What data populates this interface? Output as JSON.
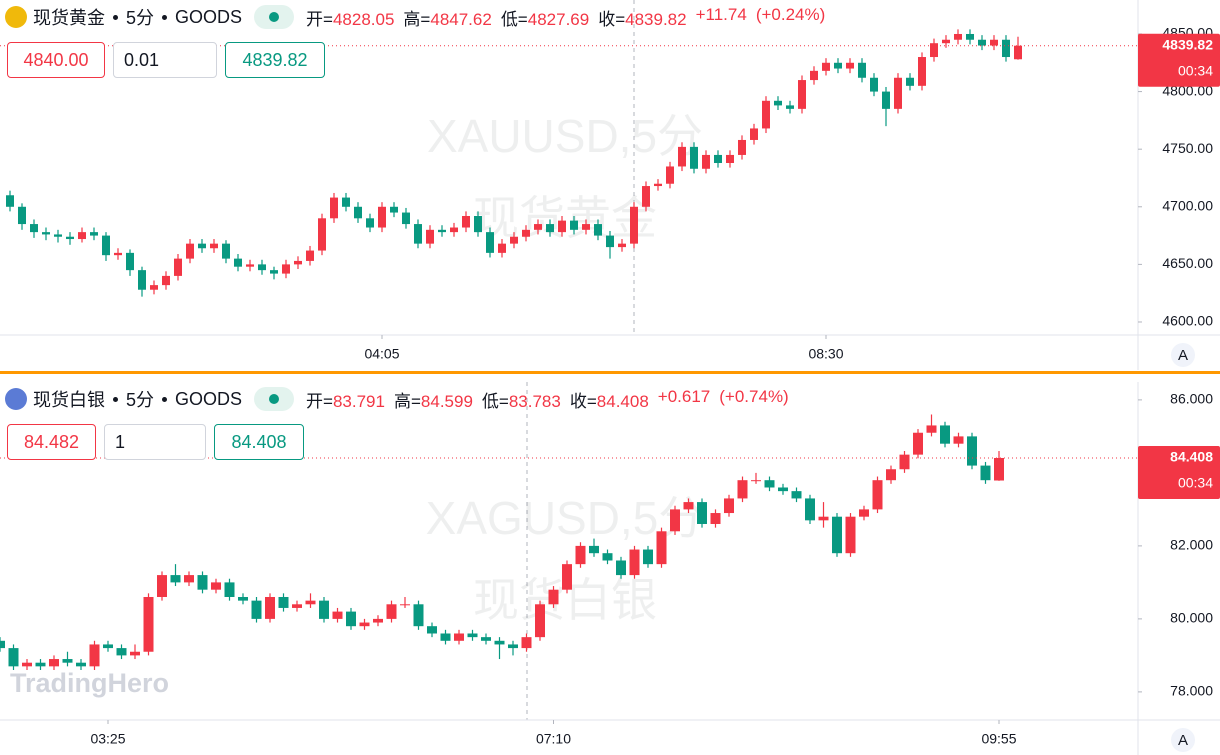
{
  "logo": "TradingHero",
  "chart_data": [
    {
      "type": "candlestick",
      "symbol": "现货黄金",
      "interval": "5分",
      "exchange": "GOODS",
      "watermark_ticker": "XAUUSD,5分",
      "watermark_name": "现货黄金",
      "ohlc_labels": [
        "开=",
        "高=",
        "低=",
        "收="
      ],
      "ohlc_values": [
        4828.05,
        4847.62,
        4827.69,
        4839.82
      ],
      "change": {
        "value": 11.74,
        "label": "+11.74"
      },
      "change_pct": {
        "value": 0.24,
        "label": "(+0.24%)"
      },
      "sell_price": {
        "value": 4840,
        "label": "4840.00"
      },
      "quantity": 0.01,
      "buy_price": 4839.82,
      "last_price": 4839.82,
      "countdown": "00:34",
      "auto_scale_label": "A",
      "up_color": "#f23645",
      "down_color": "#089981",
      "grid": false,
      "ylim": [
        4588.7,
        4879.5
      ],
      "yticks": [
        {
          "value": 4600,
          "label": "4600.00"
        },
        {
          "value": 4650,
          "label": "4650.00"
        },
        {
          "value": 4700,
          "label": "4700.00"
        },
        {
          "value": 4750,
          "label": "4750.00"
        },
        {
          "value": 4800,
          "label": "4800.00"
        },
        {
          "value": 4850,
          "label": "4850.00"
        }
      ],
      "xticks": [
        {
          "value": 31,
          "label": "04:05"
        },
        {
          "value": 68,
          "label": "08:30"
        }
      ],
      "ohlc": [
        [
          4710,
          4714,
          4696,
          4700
        ],
        [
          4700,
          4703,
          4680,
          4685
        ],
        [
          4685,
          4689,
          4673,
          4678
        ],
        [
          4678,
          4682,
          4671,
          4676
        ],
        [
          4676,
          4680,
          4669,
          4674
        ],
        [
          4674,
          4678,
          4667,
          4672
        ],
        [
          4672,
          4682,
          4669,
          4678
        ],
        [
          4678,
          4682,
          4671,
          4675
        ],
        [
          4675,
          4678,
          4653,
          4658
        ],
        [
          4658,
          4664,
          4654,
          4660
        ],
        [
          4660,
          4663,
          4640,
          4645
        ],
        [
          4645,
          4648,
          4622,
          4628
        ],
        [
          4628,
          4636,
          4624,
          4632
        ],
        [
          4632,
          4644,
          4628,
          4640
        ],
        [
          4640,
          4659,
          4636,
          4655
        ],
        [
          4655,
          4672,
          4651,
          4668
        ],
        [
          4668,
          4672,
          4660,
          4664
        ],
        [
          4664,
          4672,
          4660,
          4668
        ],
        [
          4668,
          4671,
          4651,
          4655
        ],
        [
          4655,
          4659,
          4644,
          4648
        ],
        [
          4648,
          4654,
          4644,
          4650
        ],
        [
          4650,
          4654,
          4641,
          4645
        ],
        [
          4645,
          4648,
          4637,
          4642
        ],
        [
          4642,
          4654,
          4638,
          4650
        ],
        [
          4650,
          4657,
          4646,
          4653
        ],
        [
          4653,
          4666,
          4649,
          4662
        ],
        [
          4662,
          4694,
          4658,
          4690
        ],
        [
          4690,
          4712,
          4686,
          4708
        ],
        [
          4708,
          4712,
          4696,
          4700
        ],
        [
          4700,
          4704,
          4686,
          4690
        ],
        [
          4690,
          4694,
          4678,
          4682
        ],
        [
          4682,
          4704,
          4678,
          4700
        ],
        [
          4700,
          4704,
          4691,
          4695
        ],
        [
          4695,
          4699,
          4681,
          4685
        ],
        [
          4685,
          4689,
          4664,
          4668
        ],
        [
          4668,
          4684,
          4664,
          4680
        ],
        [
          4680,
          4684,
          4674,
          4678
        ],
        [
          4678,
          4686,
          4674,
          4682
        ],
        [
          4682,
          4696,
          4678,
          4692
        ],
        [
          4692,
          4696,
          4674,
          4678
        ],
        [
          4678,
          4682,
          4656,
          4660
        ],
        [
          4660,
          4672,
          4656,
          4668
        ],
        [
          4668,
          4678,
          4664,
          4674
        ],
        [
          4674,
          4684,
          4670,
          4680
        ],
        [
          4680,
          4689,
          4676,
          4685
        ],
        [
          4685,
          4689,
          4674,
          4678
        ],
        [
          4678,
          4692,
          4674,
          4688
        ],
        [
          4688,
          4692,
          4676,
          4680
        ],
        [
          4680,
          4689,
          4676,
          4685
        ],
        [
          4685,
          4689,
          4671,
          4675
        ],
        [
          4675,
          4679,
          4655,
          4665
        ],
        [
          4665,
          4672,
          4661,
          4668
        ],
        [
          4668,
          4704,
          4664,
          4700
        ],
        [
          4700,
          4722,
          4696,
          4718
        ],
        [
          4718,
          4724,
          4714,
          4720
        ],
        [
          4720,
          4739,
          4716,
          4735
        ],
        [
          4735,
          4756,
          4731,
          4752
        ],
        [
          4752,
          4756,
          4729,
          4733
        ],
        [
          4733,
          4749,
          4729,
          4745
        ],
        [
          4745,
          4749,
          4734,
          4738
        ],
        [
          4738,
          4749,
          4734,
          4745
        ],
        [
          4745,
          4762,
          4741,
          4758
        ],
        [
          4758,
          4772,
          4754,
          4768
        ],
        [
          4768,
          4796,
          4764,
          4792
        ],
        [
          4792,
          4796,
          4784,
          4788
        ],
        [
          4788,
          4792,
          4781,
          4785
        ],
        [
          4785,
          4814,
          4781,
          4810
        ],
        [
          4810,
          4822,
          4806,
          4818
        ],
        [
          4818,
          4829,
          4814,
          4825
        ],
        [
          4825,
          4829,
          4816,
          4820
        ],
        [
          4820,
          4829,
          4816,
          4825
        ],
        [
          4825,
          4829,
          4808,
          4812
        ],
        [
          4812,
          4816,
          4796,
          4800
        ],
        [
          4800,
          4804,
          4770,
          4785
        ],
        [
          4785,
          4816,
          4781,
          4812
        ],
        [
          4812,
          4816,
          4801,
          4805
        ],
        [
          4805,
          4834,
          4801,
          4830
        ],
        [
          4830,
          4846,
          4826,
          4842
        ],
        [
          4842,
          4849,
          4838,
          4845
        ],
        [
          4845,
          4854,
          4841,
          4850
        ],
        [
          4850,
          4854,
          4841,
          4845
        ],
        [
          4845,
          4849,
          4836,
          4840
        ],
        [
          4840,
          4849,
          4836,
          4845
        ],
        [
          4845,
          4849,
          4826,
          4830
        ],
        [
          4828.05,
          4847.62,
          4827.69,
          4839.82
        ]
      ]
    },
    {
      "type": "candlestick",
      "symbol": "现货白银",
      "interval": "5分",
      "exchange": "GOODS",
      "watermark_ticker": "XAGUSD,5分",
      "watermark_name": "现货白银",
      "ohlc_labels": [
        "开=",
        "高=",
        "低=",
        "收="
      ],
      "ohlc_values": [
        83.791,
        84.599,
        83.783,
        84.408
      ],
      "change": {
        "value": 0.617,
        "label": "+0.617"
      },
      "change_pct": {
        "value": 0.74,
        "label": "(+0.74%)"
      },
      "sell_price": 84.482,
      "quantity": 1,
      "buy_price": 84.408,
      "last_price": 84.408,
      "countdown": "00:34",
      "auto_scale_label": "A",
      "up_color": "#f23645",
      "down_color": "#089981",
      "grid": false,
      "ylim": [
        77.23,
        86.49
      ],
      "yticks": [
        {
          "value": 78,
          "label": "78.000"
        },
        {
          "value": 80,
          "label": "80.000"
        },
        {
          "value": 82,
          "label": "82.000"
        },
        {
          "value": 86,
          "label": "86.000"
        }
      ],
      "xticks": [
        {
          "value": 8,
          "label": "03:25"
        },
        {
          "value": 41,
          "label": "07:10"
        },
        {
          "value": 74,
          "label": "09:55"
        }
      ],
      "ohlc": [
        [
          79.4,
          79.5,
          79.1,
          79.2
        ],
        [
          79.2,
          79.3,
          78.6,
          78.7
        ],
        [
          78.7,
          78.9,
          78.6,
          78.8
        ],
        [
          78.8,
          78.9,
          78.6,
          78.7
        ],
        [
          78.7,
          79.0,
          78.6,
          78.9
        ],
        [
          78.9,
          79.1,
          78.7,
          78.8
        ],
        [
          78.8,
          78.9,
          78.6,
          78.7
        ],
        [
          78.7,
          79.4,
          78.6,
          79.3
        ],
        [
          79.3,
          79.4,
          79.1,
          79.2
        ],
        [
          79.2,
          79.3,
          78.9,
          79.0
        ],
        [
          79.0,
          79.3,
          78.9,
          79.1
        ],
        [
          79.1,
          80.7,
          79.0,
          80.6
        ],
        [
          80.6,
          81.3,
          80.5,
          81.2
        ],
        [
          81.2,
          81.5,
          80.9,
          81.0
        ],
        [
          81.0,
          81.3,
          80.9,
          81.2
        ],
        [
          81.2,
          81.3,
          80.7,
          80.8
        ],
        [
          80.8,
          81.1,
          80.7,
          81.0
        ],
        [
          81.0,
          81.1,
          80.5,
          80.6
        ],
        [
          80.6,
          80.7,
          80.4,
          80.5
        ],
        [
          80.5,
          80.6,
          79.9,
          80.0
        ],
        [
          80.0,
          80.7,
          79.9,
          80.6
        ],
        [
          80.6,
          80.7,
          80.2,
          80.3
        ],
        [
          80.3,
          80.5,
          80.2,
          80.4
        ],
        [
          80.4,
          80.7,
          80.3,
          80.5
        ],
        [
          80.5,
          80.6,
          79.9,
          80.0
        ],
        [
          80.0,
          80.3,
          79.9,
          80.2
        ],
        [
          80.2,
          80.3,
          79.7,
          79.8
        ],
        [
          79.8,
          80.0,
          79.7,
          79.9
        ],
        [
          79.9,
          80.1,
          79.8,
          80.0
        ],
        [
          80.0,
          80.5,
          79.9,
          80.4
        ],
        [
          80.4,
          80.6,
          80.3,
          80.4
        ],
        [
          80.4,
          80.5,
          79.7,
          79.8
        ],
        [
          79.8,
          79.9,
          79.5,
          79.6
        ],
        [
          79.6,
          79.7,
          79.3,
          79.4
        ],
        [
          79.4,
          79.7,
          79.3,
          79.6
        ],
        [
          79.6,
          79.7,
          79.4,
          79.5
        ],
        [
          79.5,
          79.6,
          79.3,
          79.4
        ],
        [
          79.4,
          79.5,
          78.9,
          79.3
        ],
        [
          79.3,
          79.4,
          79.0,
          79.2
        ],
        [
          79.2,
          79.6,
          79.1,
          79.5
        ],
        [
          79.5,
          80.5,
          79.4,
          80.4
        ],
        [
          80.4,
          80.9,
          80.3,
          80.8
        ],
        [
          80.8,
          81.6,
          80.7,
          81.5
        ],
        [
          81.5,
          82.1,
          81.4,
          82.0
        ],
        [
          82.0,
          82.2,
          81.7,
          81.8
        ],
        [
          81.8,
          81.9,
          81.5,
          81.6
        ],
        [
          81.6,
          81.7,
          81.1,
          81.2
        ],
        [
          81.2,
          82.0,
          81.1,
          81.9
        ],
        [
          81.9,
          82.0,
          81.4,
          81.5
        ],
        [
          81.5,
          82.5,
          81.4,
          82.4
        ],
        [
          82.4,
          83.1,
          82.3,
          83.0
        ],
        [
          83.0,
          83.3,
          82.9,
          83.2
        ],
        [
          83.2,
          83.3,
          82.5,
          82.6
        ],
        [
          82.6,
          83.0,
          82.5,
          82.9
        ],
        [
          82.9,
          83.4,
          82.8,
          83.3
        ],
        [
          83.3,
          83.9,
          83.2,
          83.8
        ],
        [
          83.8,
          84.0,
          83.7,
          83.8
        ],
        [
          83.8,
          83.9,
          83.5,
          83.6
        ],
        [
          83.6,
          83.7,
          83.4,
          83.5
        ],
        [
          83.5,
          83.6,
          83.2,
          83.3
        ],
        [
          83.3,
          83.4,
          82.6,
          82.7
        ],
        [
          82.7,
          83.2,
          82.5,
          82.8
        ],
        [
          82.8,
          82.9,
          81.7,
          81.8
        ],
        [
          81.8,
          82.9,
          81.7,
          82.8
        ],
        [
          82.8,
          83.1,
          82.7,
          83.0
        ],
        [
          83.0,
          83.9,
          82.9,
          83.8
        ],
        [
          83.8,
          84.2,
          83.7,
          84.1
        ],
        [
          84.1,
          84.6,
          84.0,
          84.5
        ],
        [
          84.5,
          85.2,
          84.4,
          85.1
        ],
        [
          85.1,
          85.6,
          85.0,
          85.3
        ],
        [
          85.3,
          85.4,
          84.7,
          84.8
        ],
        [
          84.8,
          85.1,
          84.7,
          85.0
        ],
        [
          85.0,
          85.1,
          84.1,
          84.2
        ],
        [
          84.2,
          84.3,
          83.7,
          83.8
        ],
        [
          83.791,
          84.599,
          83.783,
          84.408
        ]
      ]
    }
  ]
}
